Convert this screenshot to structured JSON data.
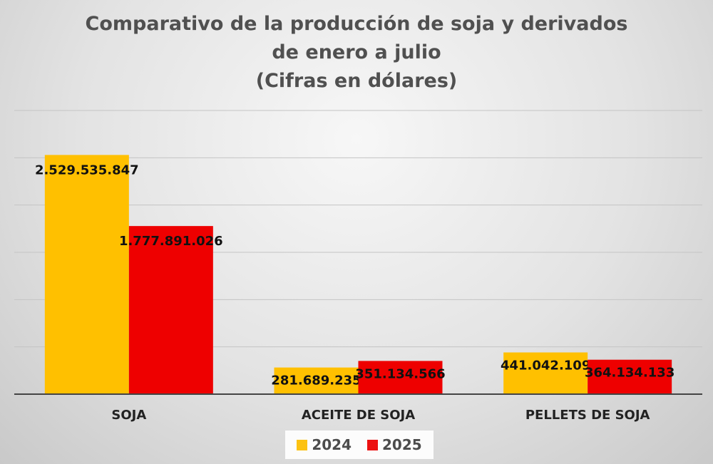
{
  "chart_data": {
    "type": "bar",
    "title_lines": [
      "Comparativo de la producción de soja y derivados",
      "de enero a julio",
      "(Cifras en dólares)"
    ],
    "categories": [
      "SOJA",
      "ACEITE DE SOJA",
      "PELLETS DE SOJA"
    ],
    "series": [
      {
        "name": "2024",
        "color": "#FFC000",
        "values": [
          2529535847,
          281689235,
          441042109
        ],
        "labels": [
          "2.529.535.847",
          "281.689.235",
          "441.042.109"
        ]
      },
      {
        "name": "2025",
        "color": "#EE0000",
        "values": [
          1777891026,
          351134566,
          364134133
        ],
        "labels": [
          "1.777.891.026",
          "351.134.566",
          "364.134.133"
        ]
      }
    ],
    "ylim": [
      0,
      3000000000
    ],
    "grid": true,
    "legend_position": "bottom"
  }
}
